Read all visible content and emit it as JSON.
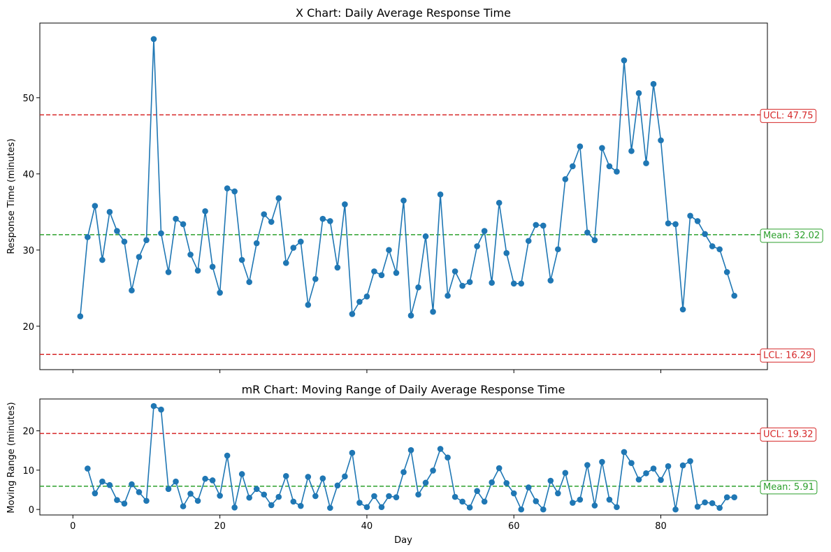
{
  "chart_data": [
    {
      "type": "line",
      "title": "X Chart: Daily Average Response Time",
      "xlabel": "",
      "ylabel": "Response Time (minutes)",
      "xlim": [
        -4.5,
        94.5
      ],
      "ylim": [
        14.3,
        59.8
      ],
      "xticks": [
        0,
        20,
        40,
        60,
        80
      ],
      "xtick_labels_visible": false,
      "yticks": [
        20,
        30,
        40,
        50
      ],
      "grid": false,
      "series": [
        {
          "x": [
            1,
            2,
            3,
            4,
            5,
            6,
            7,
            8,
            9,
            10,
            11,
            12,
            13,
            14,
            15,
            16,
            17,
            18,
            19,
            20,
            21,
            22,
            23,
            24,
            25,
            26,
            27,
            28,
            29,
            30,
            31,
            32,
            33,
            34,
            35,
            36,
            37,
            38,
            39,
            40,
            41,
            42,
            43,
            44,
            45,
            46,
            47,
            48,
            49,
            50,
            51,
            52,
            53,
            54,
            55,
            56,
            57,
            58,
            59,
            60,
            61,
            62,
            63,
            64,
            65,
            66,
            67,
            68,
            69,
            70,
            71,
            72,
            73,
            74,
            75,
            76,
            77,
            78,
            79,
            80,
            81,
            82,
            83,
            84,
            85,
            86,
            87,
            88,
            89,
            90
          ],
          "values": [
            21.3,
            31.7,
            35.8,
            28.7,
            35.0,
            32.5,
            31.1,
            24.7,
            29.1,
            31.3,
            57.7,
            32.2,
            27.1,
            34.1,
            33.4,
            29.4,
            27.3,
            35.1,
            27.8,
            24.4,
            38.1,
            37.7,
            28.7,
            25.8,
            30.9,
            34.7,
            33.7,
            36.8,
            28.3,
            30.3,
            31.1,
            22.8,
            26.2,
            34.1,
            33.8,
            27.7,
            36.0,
            21.6,
            23.2,
            23.9,
            27.2,
            26.7,
            30.0,
            27.0,
            36.5,
            21.4,
            25.1,
            31.8,
            21.9,
            37.3,
            24.0,
            27.2,
            25.3,
            25.8,
            30.5,
            32.5,
            25.7,
            36.2,
            29.6,
            25.6,
            25.6,
            31.2,
            33.3,
            33.2,
            26.0,
            30.1,
            39.3,
            41.0,
            43.6,
            32.3,
            31.3,
            43.4,
            41.0,
            40.3,
            54.9,
            43.0,
            50.6,
            41.4,
            51.8,
            44.4,
            33.5,
            33.4,
            22.2,
            34.5,
            33.8,
            32.1,
            30.5,
            30.1,
            27.1,
            24.0
          ],
          "color": "#1f77b4"
        }
      ],
      "reference_lines": [
        {
          "label": "UCL: 47.75",
          "value": 47.75,
          "color": "#d62728"
        },
        {
          "label": "Mean: 32.02",
          "value": 32.02,
          "color": "#2ca02c"
        },
        {
          "label": "LCL: 16.29",
          "value": 16.29,
          "color": "#d62728"
        }
      ]
    },
    {
      "type": "line",
      "title": "mR Chart: Moving Range of Daily Average Response Time",
      "xlabel": "Day",
      "ylabel": "Moving Range (minutes)",
      "xlim": [
        -4.5,
        94.5
      ],
      "ylim": [
        -1.4,
        28.1
      ],
      "xticks": [
        0,
        20,
        40,
        60,
        80
      ],
      "yticks": [
        0,
        10,
        20
      ],
      "grid": false,
      "series": [
        {
          "x": [
            2,
            3,
            4,
            5,
            6,
            7,
            8,
            9,
            10,
            11,
            12,
            13,
            14,
            15,
            16,
            17,
            18,
            19,
            20,
            21,
            22,
            23,
            24,
            25,
            26,
            27,
            28,
            29,
            30,
            31,
            32,
            33,
            34,
            35,
            36,
            37,
            38,
            39,
            40,
            41,
            42,
            43,
            44,
            45,
            46,
            47,
            48,
            49,
            50,
            51,
            52,
            53,
            54,
            55,
            56,
            57,
            58,
            59,
            60,
            61,
            62,
            63,
            64,
            65,
            66,
            67,
            68,
            69,
            70,
            71,
            72,
            73,
            74,
            75,
            76,
            77,
            78,
            79,
            80,
            81,
            82,
            83,
            84,
            85,
            86,
            87,
            88,
            89,
            90
          ],
          "values": [
            10.4,
            4.1,
            7.1,
            6.2,
            2.4,
            1.5,
            6.4,
            4.4,
            2.2,
            26.3,
            25.4,
            5.2,
            7.1,
            0.8,
            4.0,
            2.2,
            7.8,
            7.4,
            3.5,
            13.7,
            0.5,
            9.0,
            3.0,
            5.2,
            3.8,
            1.1,
            3.2,
            8.5,
            2.0,
            0.9,
            8.3,
            3.4,
            7.9,
            0.4,
            6.1,
            8.4,
            14.4,
            1.7,
            0.6,
            3.4,
            0.6,
            3.4,
            3.1,
            9.5,
            15.1,
            3.8,
            6.8,
            9.9,
            15.4,
            13.2,
            3.2,
            2.0,
            0.5,
            4.7,
            2.0,
            6.9,
            10.5,
            6.7,
            4.1,
            0.0,
            5.6,
            2.1,
            0.0,
            7.3,
            4.1,
            9.3,
            1.7,
            2.5,
            11.3,
            1.0,
            12.1,
            2.5,
            0.6,
            14.6,
            11.8,
            7.6,
            9.2,
            10.4,
            7.5,
            11.0,
            0.0,
            11.2,
            12.3,
            0.7,
            1.8,
            1.6,
            0.4,
            3.1,
            3.1
          ],
          "color": "#1f77b4"
        }
      ],
      "reference_lines": [
        {
          "label": "UCL: 19.32",
          "value": 19.32,
          "color": "#d62728"
        },
        {
          "label": "Mean: 5.91",
          "value": 5.91,
          "color": "#2ca02c"
        }
      ]
    }
  ]
}
